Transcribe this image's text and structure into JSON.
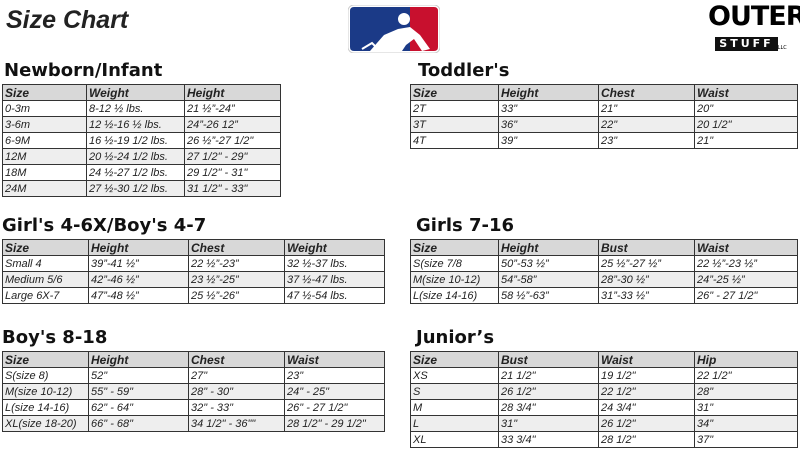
{
  "header": {
    "title": "Size Chart",
    "brand": {
      "line1": "OUTER",
      "line2": "STUFF",
      "suffix": "LLC"
    }
  },
  "tables": [
    {
      "title": "Newborn/Infant",
      "columns": [
        "Size",
        "Weight",
        "Height"
      ],
      "rows": [
        [
          "0-3m",
          "8-12 ½ lbs.",
          "21 ½”-24”"
        ],
        [
          "3-6m",
          "12 ½-16 ½ lbs.",
          "24”-26 12”"
        ],
        [
          "6-9M",
          "16 ½-19 1/2 lbs.",
          "26 ½”-27 1/2\""
        ],
        [
          "12M",
          "20 ½-24 1/2 lbs.",
          "27 1/2\" - 29\""
        ],
        [
          "18M",
          "24 ½-27 1/2 lbs.",
          "29 1/2\" - 31\""
        ],
        [
          "24M",
          "27 ½-30 1/2 lbs.",
          "31 1/2\" - 33\""
        ]
      ]
    },
    {
      "title": "Toddler's",
      "columns": [
        "Size",
        "Height",
        "Chest",
        "Waist"
      ],
      "rows": [
        [
          "2T",
          "33\"",
          "21\"",
          "20\""
        ],
        [
          "3T",
          "36\"",
          "22\"",
          "20 1/2\""
        ],
        [
          "4T",
          "39\"",
          "23\"",
          "21\""
        ]
      ]
    },
    {
      "title": "Girl's 4-6X/Boy's 4-7",
      "columns": [
        "Size",
        "Height",
        "Chest",
        "Weight"
      ],
      "rows": [
        [
          "Small 4",
          "39”-41 ½”",
          "22 ½”-23”",
          "32 ½-37 lbs."
        ],
        [
          "Medium 5/6",
          "42”-46 ½”",
          "23 ½”-25”",
          "37 ½-47 lbs."
        ],
        [
          "Large 6X-7",
          "47”-48 ½”",
          "25 ½”-26”",
          "47 ½-54 lbs."
        ]
      ]
    },
    {
      "title": "Girls 7-16",
      "columns": [
        "Size",
        "Height",
        "Bust",
        "Waist"
      ],
      "rows": [
        [
          "S(size 7/8",
          "50”-53 ½”",
          "25 ½”-27 ½”",
          "22 ½”-23 ½”"
        ],
        [
          "M(size 10-12)",
          "54”-58”",
          "28”-30 ½”",
          "24”-25 ½”"
        ],
        [
          "L(size 14-16)",
          "58 ½”-63”",
          "31”-33 ½”",
          "26\" - 27 1/2\""
        ]
      ]
    },
    {
      "title": "Boy's 8-18",
      "columns": [
        "Size",
        "Height",
        "Chest",
        "Waist"
      ],
      "rows": [
        [
          "S(size 8)",
          "52\"",
          "27\"",
          "23\""
        ],
        [
          "M(size 10-12)",
          "55\" - 59\"",
          "28\" - 30\"",
          "24\" - 25\""
        ],
        [
          "L(size 14-16)",
          "62\" - 64\"",
          "32\" - 33\"",
          "26\" - 27 1/2\""
        ],
        [
          "XL(size 18-20)",
          "66\" - 68\"",
          "34 1/2\" - 36\"\"",
          "28 1/2\" - 29 1/2\""
        ]
      ]
    },
    {
      "title": "Junior’s",
      "columns": [
        "Size",
        "Bust",
        "Waist",
        "Hip"
      ],
      "rows": [
        [
          "XS",
          "21 1/2\"",
          "19 1/2\"",
          "22 1/2\""
        ],
        [
          "S",
          "26 1/2\"",
          "22 1/2\"",
          "28\""
        ],
        [
          "M",
          "28 3/4\"",
          "24 3/4\"",
          "31\""
        ],
        [
          "L",
          "31\"",
          "26 1/2\"",
          "34\""
        ],
        [
          "XL",
          "33 3/4\"",
          "28 1/2\"",
          "37\""
        ]
      ]
    }
  ]
}
